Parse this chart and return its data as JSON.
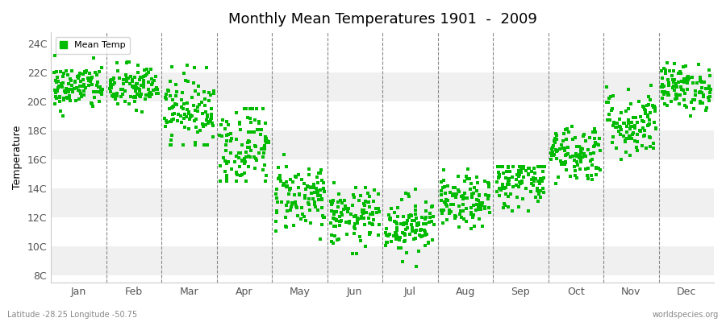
{
  "title": "Monthly Mean Temperatures 1901  -  2009",
  "ylabel": "Temperature",
  "fig_bg_color": "#ffffff",
  "plot_bg_color": "#ffffff",
  "dot_color": "#00bb00",
  "dot_size": 8,
  "months": [
    "Jan",
    "Feb",
    "Mar",
    "Apr",
    "May",
    "Jun",
    "Jul",
    "Aug",
    "Sep",
    "Oct",
    "Nov",
    "Dec"
  ],
  "yticks": [
    8,
    10,
    12,
    14,
    16,
    18,
    20,
    22,
    24
  ],
  "ylim": [
    7.5,
    24.8
  ],
  "xlim": [
    0,
    12
  ],
  "n_years": 109,
  "monthly_means": [
    21.0,
    21.0,
    19.5,
    17.0,
    13.5,
    12.0,
    11.5,
    13.0,
    14.5,
    16.5,
    18.5,
    21.0
  ],
  "monthly_stds": [
    0.8,
    0.8,
    1.2,
    1.5,
    1.2,
    1.0,
    1.0,
    0.9,
    0.9,
    1.0,
    1.2,
    0.8
  ],
  "monthly_ranges": [
    [
      19.0,
      23.8
    ],
    [
      19.0,
      23.2
    ],
    [
      17.0,
      22.5
    ],
    [
      14.5,
      19.5
    ],
    [
      10.5,
      16.5
    ],
    [
      9.5,
      16.5
    ],
    [
      8.5,
      15.5
    ],
    [
      10.5,
      15.5
    ],
    [
      12.0,
      15.5
    ],
    [
      13.5,
      18.5
    ],
    [
      16.0,
      22.5
    ],
    [
      19.0,
      23.5
    ]
  ],
  "band_colors": [
    "#f0f0f0",
    "#ffffff"
  ],
  "footnote_left": "Latitude -28.25 Longitude -50.75",
  "footnote_right": "worldspecies.org"
}
